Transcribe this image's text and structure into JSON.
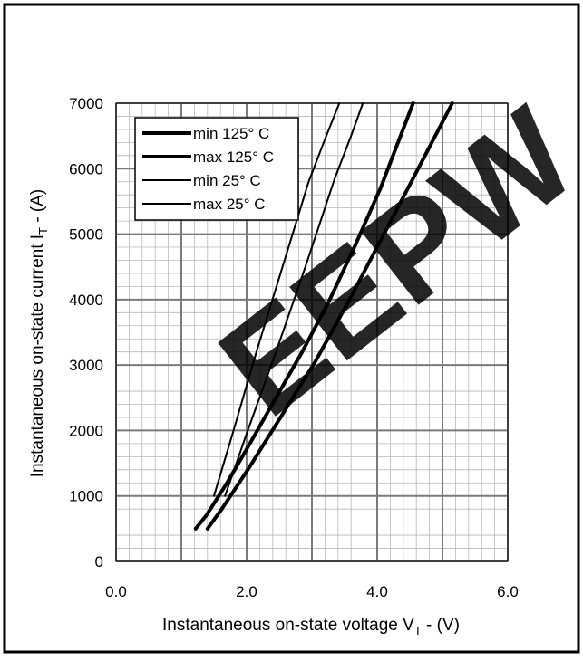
{
  "chart_data": {
    "type": "line",
    "xlabel": {
      "main": "Instantaneous on-state voltage V",
      "sub": "T",
      "tail": " - (V)"
    },
    "ylabel": {
      "main": "Instantaneous on-state current I",
      "sub": "T",
      "tail": " -  (A)"
    },
    "xlim": [
      0,
      6
    ],
    "ylim": [
      0,
      7000
    ],
    "x_ticks": [
      0,
      2,
      4,
      6
    ],
    "x_tick_labels": [
      "0.0",
      "2.0",
      "4.0",
      "6.0"
    ],
    "y_ticks": [
      0,
      1000,
      2000,
      3000,
      4000,
      5000,
      6000,
      7000
    ],
    "y_tick_labels": [
      "0",
      "1000",
      "2000",
      "3000",
      "4000",
      "5000",
      "6000",
      "7000"
    ],
    "grid": true,
    "legend_position": "top-left",
    "series": [
      {
        "name": "min 125° C",
        "weight": "thick",
        "x": [
          1.22,
          1.38,
          1.7,
          2.05,
          2.45,
          2.85,
          3.25,
          3.65,
          4.05,
          4.3,
          4.55
        ],
        "y": [
          500,
          700,
          1200,
          1800,
          2500,
          3200,
          3950,
          4800,
          5700,
          6350,
          7000
        ]
      },
      {
        "name": "max 125° C",
        "weight": "thick",
        "x": [
          1.4,
          1.62,
          2.05,
          2.55,
          3.05,
          3.55,
          4.05,
          4.55,
          5.15
        ],
        "y": [
          500,
          800,
          1450,
          2250,
          3050,
          3950,
          4900,
          5850,
          7000
        ]
      },
      {
        "name": "min 25° C",
        "weight": "thin",
        "x": [
          1.5,
          1.8,
          2.15,
          2.55,
          2.95,
          3.2,
          3.42
        ],
        "y": [
          1000,
          2000,
          3200,
          4500,
          5800,
          6450,
          7000
        ]
      },
      {
        "name": "max 25° C",
        "weight": "thin",
        "x": [
          1.67,
          2.0,
          2.45,
          2.9,
          3.35,
          3.6,
          3.78
        ],
        "y": [
          1000,
          1950,
          3200,
          4500,
          5850,
          6500,
          7000
        ]
      }
    ]
  },
  "watermark": {
    "text": "EEPW",
    "color": "#e8505a"
  }
}
